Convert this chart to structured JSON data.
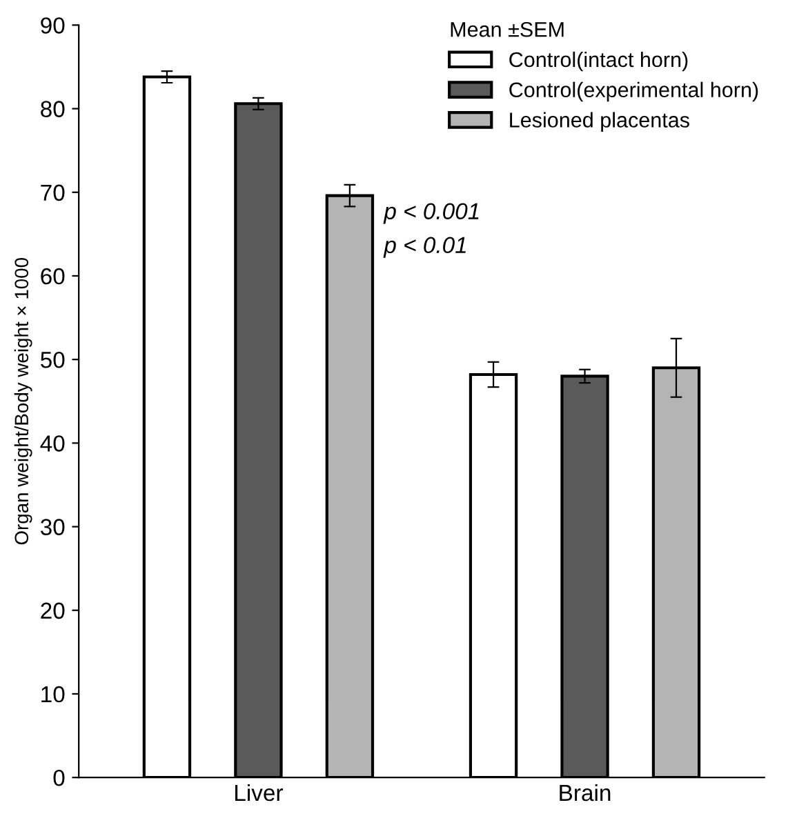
{
  "chart_data": {
    "type": "bar",
    "ylabel": "Organ weight/Body weight × 1000",
    "legend_title": "Mean ±SEM",
    "categories": [
      "Liver",
      "Brain"
    ],
    "series": [
      {
        "name": "Control(intact horn)",
        "color": "#ffffff",
        "values": [
          83.8,
          48.2
        ],
        "errors": [
          0.7,
          1.5
        ]
      },
      {
        "name": "Control(experimental horn)",
        "color": "#5a5a5a",
        "values": [
          80.6,
          48.0
        ],
        "errors": [
          0.7,
          0.8
        ]
      },
      {
        "name": "Lesioned placentas",
        "color": "#b4b4b4",
        "values": [
          69.6,
          49.0
        ],
        "errors": [
          1.3,
          3.5
        ]
      }
    ],
    "annotations": [
      "p < 0.001",
      "p < 0.01"
    ],
    "ylim": [
      0,
      90
    ],
    "yticks": [
      0,
      10,
      20,
      30,
      40,
      50,
      60,
      70,
      80,
      90
    ],
    "grid": false,
    "legend": "top right"
  }
}
